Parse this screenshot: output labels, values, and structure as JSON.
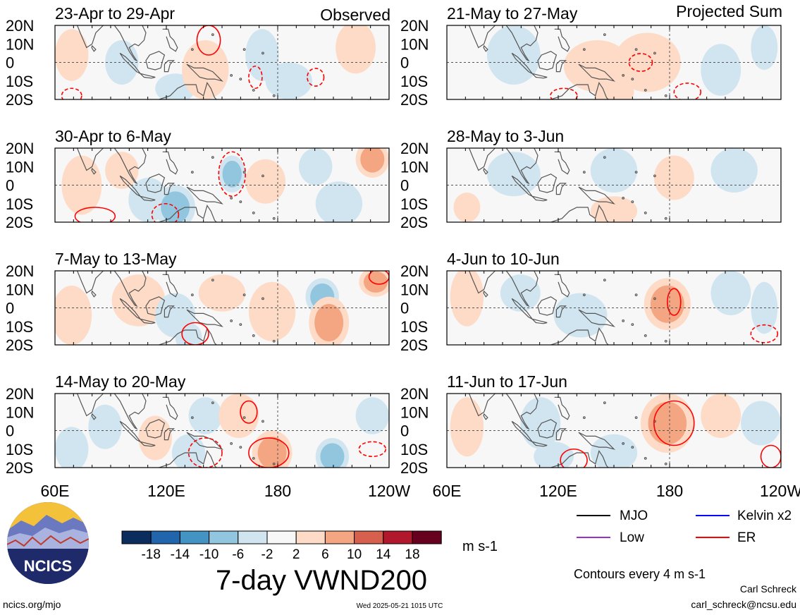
{
  "observed_label": "Observed",
  "projected_label": "Projected Sum",
  "panels": [
    {
      "title": "23-Apr to 29-Apr"
    },
    {
      "title": "30-Apr to 6-May"
    },
    {
      "title": "7-May to 13-May"
    },
    {
      "title": "14-May to 20-May"
    },
    {
      "title": "21-May to 27-May"
    },
    {
      "title": "28-May to 3-Jun"
    },
    {
      "title": "4-Jun to 10-Jun"
    },
    {
      "title": "11-Jun to 17-Jun"
    }
  ],
  "lat_labels": [
    "20N",
    "10N",
    "0",
    "10S",
    "20S"
  ],
  "lon_labels": [
    "60E",
    "120E",
    "180",
    "120W"
  ],
  "right_lon_labels": [
    "60E",
    "120E",
    "180",
    "120W"
  ],
  "colorbar": {
    "ticks": [
      "-18",
      "-14",
      "-10",
      "-6",
      "-2",
      "2",
      "6",
      "10",
      "14",
      "18"
    ],
    "colors": [
      "#0b2d5e",
      "#2166ac",
      "#4393c3",
      "#92c5de",
      "#d1e5f0",
      "#f7f7f7",
      "#fddbc7",
      "#f4a582",
      "#d6604d",
      "#b2182b",
      "#67001f"
    ],
    "units": "m s-1"
  },
  "figure_title": "7-day VWND200",
  "legend": [
    {
      "label": "MJO",
      "color": "#000000"
    },
    {
      "label": "Kelvin x2",
      "color": "#0000ff"
    },
    {
      "label": "Low",
      "color": "#9932cc"
    },
    {
      "label": "ER",
      "color": "#ff0000"
    }
  ],
  "contour_note": "Contours every 4 m s-1",
  "logo_text": "NCICS",
  "footer_left": "ncics.org/mjo",
  "footer_center": "Wed 2025-05-21 1015 UTC",
  "author_name": "Carl Schreck",
  "author_email": "carl_schreck@ncsu.edu",
  "chart_data": {
    "type": "heatmap",
    "variable": "VWND200",
    "lon_range": [
      60,
      240
    ],
    "lat_range": [
      -20,
      20
    ],
    "panels": [
      {
        "title": "23-Apr to 29-Apr",
        "kind": "Observed",
        "blobs": [
          [
            0.05,
            0.4,
            0.05,
            0.35,
            4
          ],
          [
            0.2,
            0.5,
            0.05,
            0.3,
            -6
          ],
          [
            0.36,
            0.85,
            0.06,
            0.2,
            -4
          ],
          [
            0.45,
            0.6,
            0.07,
            0.4,
            6
          ],
          [
            0.62,
            0.4,
            0.05,
            0.35,
            -3
          ],
          [
            0.7,
            0.75,
            0.07,
            0.25,
            -4
          ],
          [
            0.9,
            0.3,
            0.06,
            0.35,
            3
          ]
        ],
        "contours": [
          [
            0.46,
            0.2,
            0.035,
            0.2,
            false
          ],
          [
            0.6,
            0.7,
            0.02,
            0.15,
            true
          ],
          [
            0.78,
            0.7,
            0.025,
            0.12,
            true
          ],
          [
            0.05,
            0.95,
            0.03,
            0.1,
            true
          ]
        ]
      },
      {
        "title": "30-Apr to 6-May",
        "kind": "Observed",
        "blobs": [
          [
            0.08,
            0.5,
            0.06,
            0.4,
            5
          ],
          [
            0.2,
            0.3,
            0.05,
            0.25,
            4
          ],
          [
            0.28,
            0.7,
            0.06,
            0.3,
            -5
          ],
          [
            0.36,
            0.8,
            0.06,
            0.3,
            -9
          ],
          [
            0.53,
            0.35,
            0.04,
            0.25,
            -8
          ],
          [
            0.63,
            0.45,
            0.06,
            0.3,
            7
          ],
          [
            0.78,
            0.25,
            0.05,
            0.25,
            -5
          ],
          [
            0.95,
            0.15,
            0.05,
            0.25,
            11
          ],
          [
            0.85,
            0.75,
            0.07,
            0.3,
            -3
          ]
        ],
        "contours": [
          [
            0.53,
            0.35,
            0.04,
            0.3,
            true
          ],
          [
            0.33,
            0.9,
            0.04,
            0.15,
            true
          ],
          [
            0.12,
            0.92,
            0.06,
            0.12,
            false
          ]
        ]
      },
      {
        "title": "7-May to 13-May",
        "kind": "Observed",
        "blobs": [
          [
            0.05,
            0.6,
            0.06,
            0.4,
            4
          ],
          [
            0.25,
            0.4,
            0.08,
            0.35,
            5
          ],
          [
            0.36,
            0.6,
            0.06,
            0.3,
            -4
          ],
          [
            0.5,
            0.3,
            0.07,
            0.25,
            6
          ],
          [
            0.65,
            0.55,
            0.07,
            0.4,
            7
          ],
          [
            0.8,
            0.35,
            0.05,
            0.25,
            -10
          ],
          [
            0.82,
            0.7,
            0.06,
            0.35,
            11
          ],
          [
            0.96,
            0.15,
            0.05,
            0.2,
            9
          ],
          [
            0.4,
            0.9,
            0.04,
            0.2,
            -5
          ]
        ],
        "contours": [
          [
            0.42,
            0.85,
            0.04,
            0.15,
            false
          ],
          [
            0.97,
            0.08,
            0.03,
            0.1,
            false
          ]
        ]
      },
      {
        "title": "14-May to 20-May",
        "kind": "Observed",
        "blobs": [
          [
            0.05,
            0.75,
            0.05,
            0.3,
            -6
          ],
          [
            0.15,
            0.45,
            0.05,
            0.3,
            -4
          ],
          [
            0.3,
            0.6,
            0.05,
            0.3,
            5
          ],
          [
            0.45,
            0.3,
            0.05,
            0.25,
            -4
          ],
          [
            0.55,
            0.3,
            0.06,
            0.3,
            6
          ],
          [
            0.65,
            0.8,
            0.06,
            0.3,
            10
          ],
          [
            0.83,
            0.85,
            0.05,
            0.25,
            -11
          ],
          [
            0.95,
            0.3,
            0.05,
            0.25,
            -4
          ],
          [
            0.4,
            0.8,
            0.05,
            0.25,
            -6
          ]
        ],
        "contours": [
          [
            0.58,
            0.25,
            0.025,
            0.15,
            false
          ],
          [
            0.64,
            0.8,
            0.06,
            0.2,
            false
          ],
          [
            0.45,
            0.8,
            0.05,
            0.2,
            true
          ],
          [
            0.95,
            0.75,
            0.04,
            0.1,
            true
          ]
        ]
      },
      {
        "title": "21-May to 27-May",
        "kind": "Projected Sum",
        "blobs": [
          [
            0.2,
            0.4,
            0.08,
            0.4,
            -3
          ],
          [
            0.45,
            0.55,
            0.1,
            0.35,
            3
          ],
          [
            0.6,
            0.5,
            0.1,
            0.4,
            4
          ],
          [
            0.82,
            0.6,
            0.06,
            0.35,
            -4
          ],
          [
            0.95,
            0.3,
            0.04,
            0.3,
            -3
          ],
          [
            0.5,
            0.9,
            0.06,
            0.2,
            4
          ]
        ],
        "contours": [
          [
            0.58,
            0.5,
            0.035,
            0.12,
            true
          ],
          [
            0.72,
            0.9,
            0.04,
            0.12,
            true
          ],
          [
            0.35,
            0.95,
            0.04,
            0.1,
            true
          ]
        ]
      },
      {
        "title": "28-May to 3-Jun",
        "kind": "Projected Sum",
        "blobs": [
          [
            0.2,
            0.35,
            0.08,
            0.3,
            -3
          ],
          [
            0.5,
            0.3,
            0.07,
            0.3,
            -3
          ],
          [
            0.68,
            0.4,
            0.06,
            0.3,
            7
          ],
          [
            0.86,
            0.3,
            0.07,
            0.3,
            -3
          ],
          [
            0.06,
            0.8,
            0.04,
            0.2,
            3
          ],
          [
            0.5,
            0.85,
            0.07,
            0.2,
            3
          ]
        ],
        "contours": []
      },
      {
        "title": "4-Jun to 10-Jun",
        "kind": "Projected Sum",
        "blobs": [
          [
            0.06,
            0.35,
            0.05,
            0.4,
            4
          ],
          [
            0.22,
            0.3,
            0.06,
            0.25,
            -4
          ],
          [
            0.4,
            0.6,
            0.08,
            0.3,
            -3
          ],
          [
            0.66,
            0.45,
            0.07,
            0.35,
            9
          ],
          [
            0.85,
            0.3,
            0.06,
            0.3,
            -3
          ],
          [
            0.95,
            0.5,
            0.04,
            0.35,
            -6
          ]
        ],
        "contours": [
          [
            0.68,
            0.42,
            0.02,
            0.18,
            false
          ],
          [
            0.95,
            0.85,
            0.04,
            0.12,
            true
          ]
        ]
      },
      {
        "title": "11-Jun to 17-Jun",
        "kind": "Projected Sum",
        "blobs": [
          [
            0.06,
            0.45,
            0.05,
            0.4,
            5
          ],
          [
            0.28,
            0.4,
            0.06,
            0.35,
            -6
          ],
          [
            0.66,
            0.4,
            0.08,
            0.4,
            10
          ],
          [
            0.82,
            0.3,
            0.06,
            0.3,
            5
          ],
          [
            0.94,
            0.4,
            0.06,
            0.3,
            -6
          ],
          [
            0.32,
            0.85,
            0.06,
            0.2,
            -4
          ],
          [
            0.5,
            0.8,
            0.07,
            0.25,
            -3
          ]
        ],
        "contours": [
          [
            0.68,
            0.4,
            0.06,
            0.3,
            false
          ],
          [
            0.38,
            0.9,
            0.04,
            0.15,
            false
          ],
          [
            0.97,
            0.85,
            0.03,
            0.15,
            false
          ]
        ]
      }
    ]
  }
}
